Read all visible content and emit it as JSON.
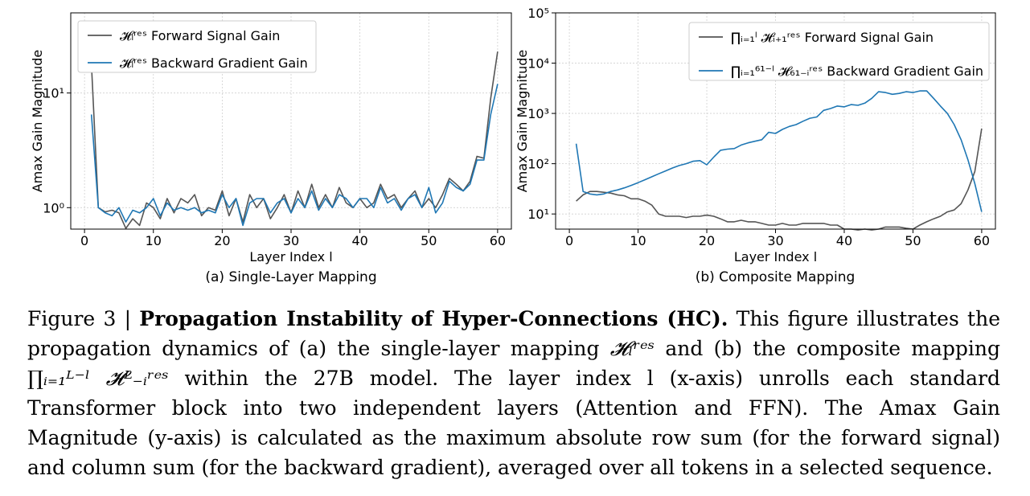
{
  "chart_data": [
    {
      "type": "line",
      "subcaption": "(a) Single-Layer Mapping",
      "xlabel": "Layer Index l",
      "ylabel": "Amax Gain Magnitude",
      "yscale": "log",
      "xlim": [
        -2,
        62
      ],
      "ylim": [
        0.65,
        50
      ],
      "xticks": [
        0,
        10,
        20,
        30,
        40,
        50,
        60
      ],
      "yticks": [
        {
          "value": 1,
          "label": "10⁰"
        },
        {
          "value": 10,
          "label": "10¹"
        }
      ],
      "grid": true,
      "legend_position": "top-left",
      "series": [
        {
          "name": "𝓗ₗʳᵉˢ Forward Signal Gain",
          "color": "#555555",
          "x": [
            1,
            2,
            3,
            4,
            5,
            6,
            7,
            8,
            9,
            10,
            11,
            12,
            13,
            14,
            15,
            16,
            17,
            18,
            19,
            20,
            21,
            22,
            23,
            24,
            25,
            26,
            27,
            28,
            29,
            30,
            31,
            32,
            33,
            34,
            35,
            36,
            37,
            38,
            39,
            40,
            41,
            42,
            43,
            44,
            45,
            46,
            47,
            48,
            49,
            50,
            51,
            52,
            53,
            54,
            55,
            56,
            57,
            58,
            59,
            60
          ],
          "values": [
            18,
            1.0,
            0.92,
            0.95,
            0.9,
            0.66,
            0.8,
            0.7,
            1.1,
            1.0,
            0.8,
            1.2,
            0.9,
            1.2,
            1.1,
            1.3,
            0.85,
            1.0,
            0.95,
            1.4,
            0.85,
            1.2,
            0.75,
            1.3,
            1.0,
            1.2,
            0.8,
            1.0,
            1.3,
            0.9,
            1.4,
            1.0,
            1.6,
            1.0,
            1.3,
            1.0,
            1.5,
            1.1,
            1.0,
            1.2,
            1.0,
            1.1,
            1.6,
            1.2,
            1.3,
            1.0,
            1.2,
            1.4,
            1.0,
            1.2,
            1.0,
            1.3,
            1.8,
            1.6,
            1.4,
            1.7,
            2.8,
            2.7,
            9,
            23
          ]
        },
        {
          "name": "𝓗ₗʳᵉˢ Backward Gradient Gain",
          "color": "#1f77b4",
          "x": [
            1,
            2,
            3,
            4,
            5,
            6,
            7,
            8,
            9,
            10,
            11,
            12,
            13,
            14,
            15,
            16,
            17,
            18,
            19,
            20,
            21,
            22,
            23,
            24,
            25,
            26,
            27,
            28,
            29,
            30,
            31,
            32,
            33,
            34,
            35,
            36,
            37,
            38,
            39,
            40,
            41,
            42,
            43,
            44,
            45,
            46,
            47,
            48,
            49,
            50,
            51,
            52,
            53,
            54,
            55,
            56,
            57,
            58,
            59,
            60
          ],
          "values": [
            6.5,
            1.0,
            0.9,
            0.85,
            1.0,
            0.75,
            0.95,
            0.9,
            1.0,
            1.2,
            0.85,
            1.1,
            0.95,
            1.0,
            0.95,
            1.0,
            0.9,
            0.95,
            0.9,
            1.3,
            1.0,
            1.2,
            0.7,
            1.1,
            1.2,
            1.2,
            0.9,
            1.1,
            1.2,
            0.9,
            1.2,
            1.0,
            1.4,
            0.95,
            1.2,
            1.0,
            1.3,
            1.2,
            1.0,
            1.2,
            1.2,
            1.0,
            1.5,
            1.1,
            1.2,
            0.95,
            1.2,
            1.3,
            1.0,
            1.5,
            0.9,
            1.1,
            1.7,
            1.5,
            1.4,
            1.6,
            2.6,
            2.6,
            6.5,
            12
          ]
        }
      ]
    },
    {
      "type": "line",
      "subcaption": "(b) Composite Mapping",
      "xlabel": "Layer Index l",
      "ylabel": "Amax Gain Magnitude",
      "yscale": "log",
      "xlim": [
        -2,
        62
      ],
      "ylim": [
        5,
        100000
      ],
      "xticks": [
        0,
        10,
        20,
        30,
        40,
        50,
        60
      ],
      "yticks": [
        {
          "value": 10,
          "label": "10¹"
        },
        {
          "value": 100,
          "label": "10²"
        },
        {
          "value": 1000,
          "label": "10³"
        },
        {
          "value": 10000,
          "label": "10⁴"
        },
        {
          "value": 100000,
          "label": "10⁵"
        }
      ],
      "grid": true,
      "legend_position": "top-right",
      "series": [
        {
          "name": "∏ᵢ₌₁ˡ 𝓗ᵢ₊₁ʳᵉˢ Forward Signal Gain",
          "color": "#555555",
          "x": [
            1,
            2,
            3,
            4,
            5,
            6,
            7,
            8,
            9,
            10,
            11,
            12,
            13,
            14,
            15,
            16,
            17,
            18,
            19,
            20,
            21,
            22,
            23,
            24,
            25,
            26,
            27,
            28,
            29,
            30,
            31,
            32,
            33,
            34,
            35,
            36,
            37,
            38,
            39,
            40,
            41,
            42,
            43,
            44,
            45,
            46,
            47,
            48,
            49,
            50,
            51,
            52,
            53,
            54,
            55,
            56,
            57,
            58,
            59,
            60
          ],
          "values": [
            18,
            24,
            28,
            28,
            27,
            26,
            24,
            23,
            20,
            20,
            18,
            15,
            10,
            9,
            9,
            9,
            8.5,
            9,
            9,
            9.5,
            9,
            8,
            7,
            7,
            7.5,
            7,
            7,
            6.5,
            6,
            6,
            6.5,
            6,
            6,
            6.5,
            6.5,
            6.5,
            6.5,
            6,
            6,
            5,
            5,
            4.8,
            5,
            4.8,
            5,
            5.5,
            5.5,
            5.5,
            5.2,
            5,
            6,
            7,
            8,
            9,
            11,
            12,
            16,
            30,
            70,
            500
          ]
        },
        {
          "name": "∏ᵢ₌₁⁶¹⁻ˡ 𝓗₆₁₋ᵢʳᵉˢ Backward Gradient Gain",
          "color": "#1f77b4",
          "x": [
            1,
            2,
            3,
            4,
            5,
            6,
            7,
            8,
            9,
            10,
            11,
            12,
            13,
            14,
            15,
            16,
            17,
            18,
            19,
            20,
            21,
            22,
            23,
            24,
            25,
            26,
            27,
            28,
            29,
            30,
            31,
            32,
            33,
            34,
            35,
            36,
            37,
            38,
            39,
            40,
            41,
            42,
            43,
            44,
            45,
            46,
            47,
            48,
            49,
            50,
            51,
            52,
            53,
            54,
            55,
            56,
            57,
            58,
            59,
            60
          ],
          "values": [
            250,
            28,
            25,
            24,
            25,
            28,
            30,
            33,
            37,
            42,
            48,
            55,
            63,
            72,
            82,
            92,
            100,
            112,
            115,
            95,
            135,
            185,
            195,
            200,
            235,
            260,
            280,
            300,
            420,
            400,
            480,
            550,
            600,
            700,
            800,
            850,
            1150,
            1250,
            1400,
            1350,
            1500,
            1450,
            1600,
            2000,
            2700,
            2600,
            2400,
            2500,
            2700,
            2600,
            2800,
            2800,
            2000,
            1400,
            1000,
            600,
            300,
            120,
            40,
            11
          ]
        }
      ]
    }
  ],
  "caption": {
    "prefix": "Figure 3 | ",
    "bold": "Propagation Instability of Hyper-Connections (HC).",
    "part1": " This figure illustrates the propagation dynamics of (a) the single-layer mapping ",
    "math1": "𝓗ₗʳᵉˢ",
    "part2": " and (b) the composite mapping ",
    "math2": "∏ᵢ₌₁ᴸ⁻ˡ 𝓗ᴸ₋ᵢʳᵉˢ",
    "part3": " within the 27B model. The layer index l (x-axis) unrolls each standard Transformer block into two independent layers (Attention and FFN). The Amax Gain Magnitude (y-axis) is calculated as the maximum absolute row sum (for the forward signal) and column sum (for the backward gradient), averaged over all tokens in a selected sequence."
  }
}
